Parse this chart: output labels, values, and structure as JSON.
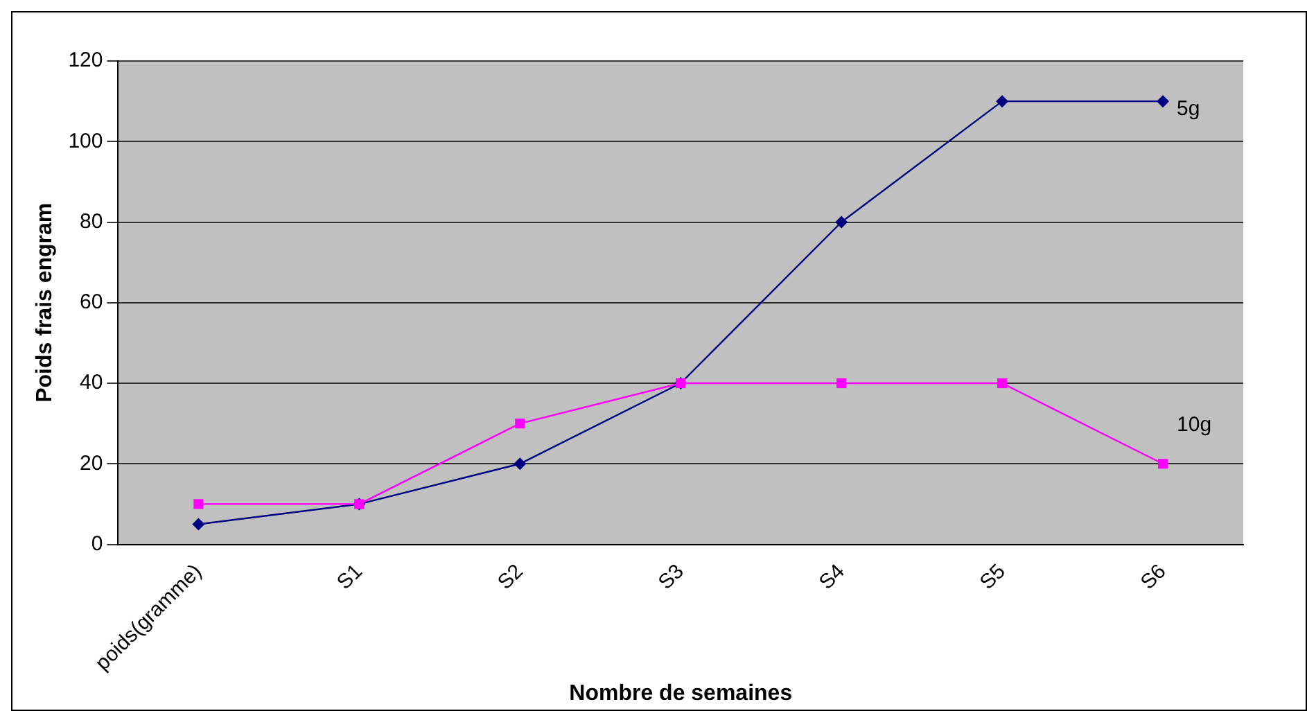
{
  "chart_data": {
    "type": "line",
    "xlabel": "Nombre de semaines",
    "ylabel": "Poids frais engram",
    "categories": [
      "poids(gramme)",
      "S1",
      "S2",
      "S3",
      "S4",
      "S5",
      "S6"
    ],
    "series": [
      {
        "name": "5g",
        "color": "#000080",
        "marker": "diamond",
        "values": [
          5,
          10,
          20,
          40,
          80,
          110,
          110
        ]
      },
      {
        "name": "10g",
        "color": "#ff00ff",
        "marker": "square",
        "values": [
          10,
          10,
          30,
          40,
          40,
          40,
          20
        ]
      }
    ],
    "ylim": [
      0,
      120
    ],
    "yticks": [
      0,
      20,
      40,
      60,
      80,
      100,
      120
    ],
    "grid": "y",
    "legend": false,
    "line_style": "solid"
  }
}
